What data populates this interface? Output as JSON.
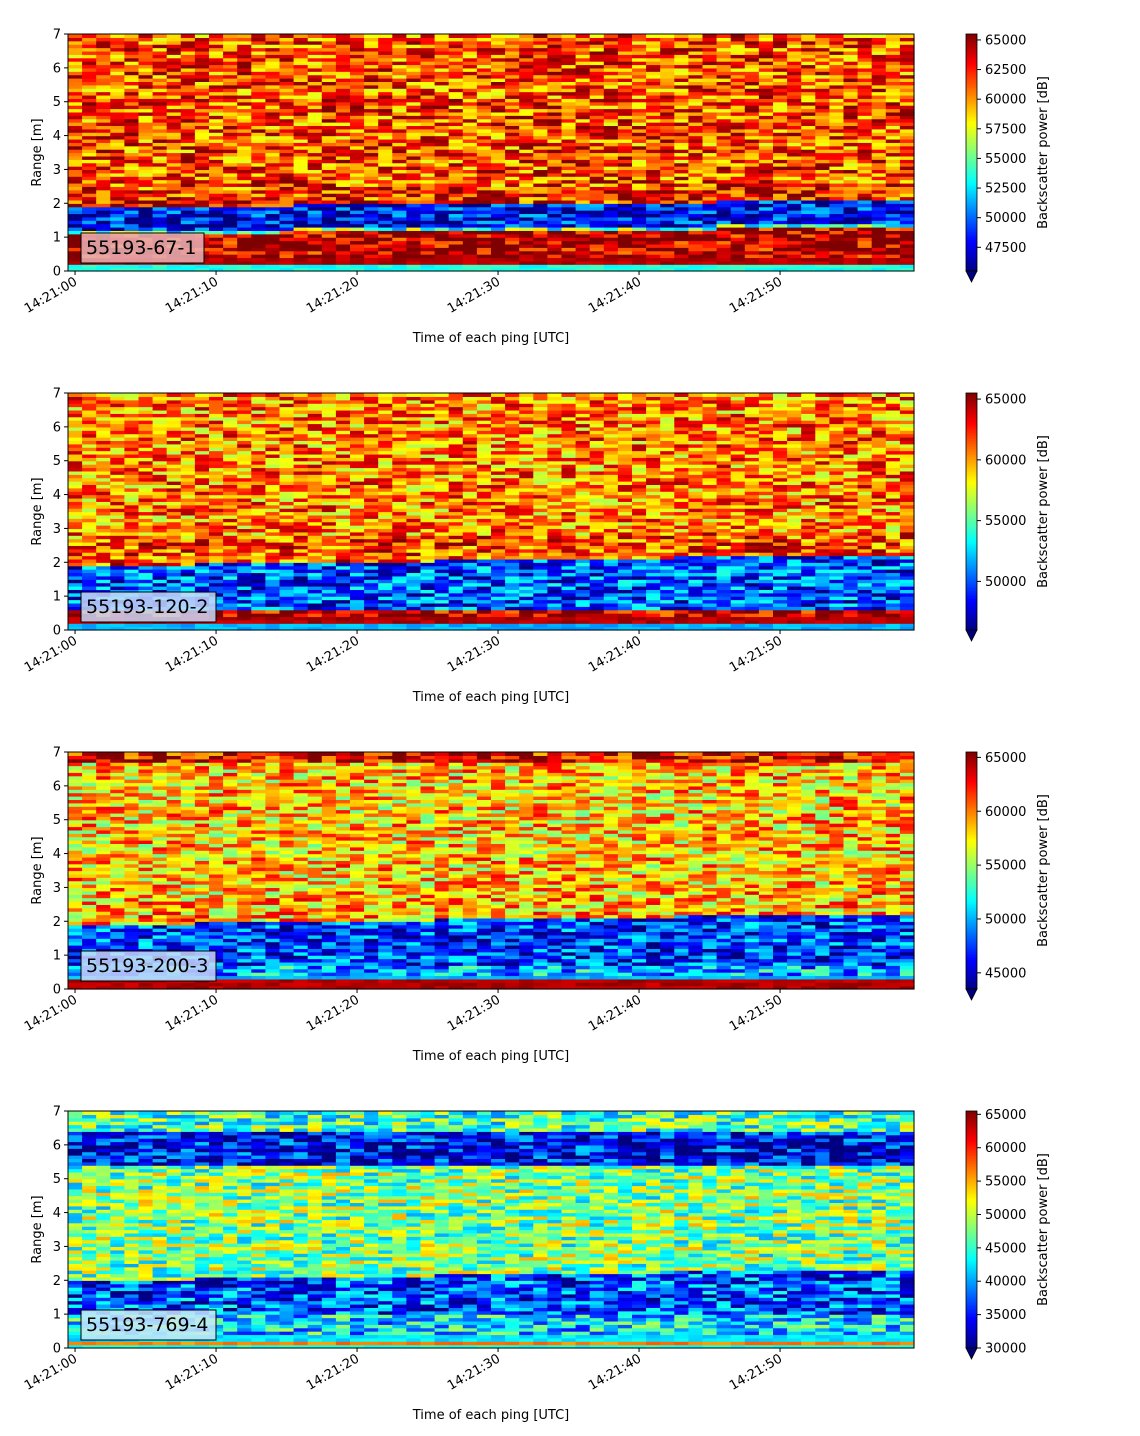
{
  "figure": {
    "colormap": "jet",
    "stops": [
      "#00007f",
      "#0000ff",
      "#007fff",
      "#00ffff",
      "#7fff7f",
      "#ffff00",
      "#ff7f00",
      "#ff0000",
      "#7f0000"
    ]
  },
  "chart_data": [
    {
      "type": "heatmap",
      "label": "55193-67-1",
      "label_color": "#e8b4b8",
      "xlabel": "Time of each ping [UTC]",
      "ylabel": "Range [m]",
      "ylim": [
        0,
        7
      ],
      "yticks": [
        "0",
        "1",
        "2",
        "3",
        "4",
        "5",
        "6",
        "7"
      ],
      "xticks": [
        "14:21:00",
        "14:21:10",
        "14:21:20",
        "14:21:30",
        "14:21:40",
        "14:21:50"
      ],
      "x_range_seconds": [
        -0.5,
        59.5
      ],
      "colorbar_label": "Backscatter power [dB]",
      "clim": [
        45500,
        65500
      ],
      "cticks": [
        "47500",
        "50000",
        "52500",
        "55000",
        "57500",
        "60000",
        "62500",
        "65000"
      ],
      "cextend": "min",
      "bands": [
        {
          "y": [
            0,
            0.2
          ],
          "level": 0.4
        },
        {
          "y": [
            0.2,
            1.1
          ],
          "level": 0.95
        },
        {
          "y": [
            1.1,
            1.2
          ],
          "level": 0.45
        },
        {
          "y": [
            1.2,
            1.9
          ],
          "level": 0.12
        },
        {
          "y": [
            1.9,
            2.4
          ],
          "level": 0.85
        },
        {
          "y": [
            2.4,
            7.0
          ],
          "level": 0.8
        }
      ]
    },
    {
      "type": "heatmap",
      "label": "55193-120-2",
      "label_color": "#c8d8f8",
      "xlabel": "Time of each ping [UTC]",
      "ylabel": "Range [m]",
      "ylim": [
        0,
        7
      ],
      "yticks": [
        "0",
        "1",
        "2",
        "3",
        "4",
        "5",
        "6",
        "7"
      ],
      "xticks": [
        "14:21:00",
        "14:21:10",
        "14:21:20",
        "14:21:30",
        "14:21:40",
        "14:21:50"
      ],
      "x_range_seconds": [
        -0.5,
        59.5
      ],
      "colorbar_label": "Backscatter power [dB]",
      "clim": [
        46000,
        65500
      ],
      "cticks": [
        "50000",
        "55000",
        "60000",
        "65000"
      ],
      "cextend": "min",
      "bands": [
        {
          "y": [
            0,
            0.2
          ],
          "level": 0.3
        },
        {
          "y": [
            0.2,
            0.6
          ],
          "level": 0.95
        },
        {
          "y": [
            0.6,
            1.9
          ],
          "level": 0.2
        },
        {
          "y": [
            1.9,
            2.6
          ],
          "level": 0.8
        },
        {
          "y": [
            2.6,
            7.0
          ],
          "level": 0.75
        }
      ]
    },
    {
      "type": "heatmap",
      "label": "55193-200-3",
      "label_color": "#c8d8f8",
      "xlabel": "Time of each ping [UTC]",
      "ylabel": "Range [m]",
      "ylim": [
        0,
        7
      ],
      "yticks": [
        "0",
        "1",
        "2",
        "3",
        "4",
        "5",
        "6",
        "7"
      ],
      "xticks": [
        "14:21:00",
        "14:21:10",
        "14:21:20",
        "14:21:30",
        "14:21:40",
        "14:21:50"
      ],
      "x_range_seconds": [
        -0.5,
        59.5
      ],
      "colorbar_label": "Backscatter power [dB]",
      "clim": [
        43500,
        65500
      ],
      "cticks": [
        "45000",
        "50000",
        "55000",
        "60000",
        "65000"
      ],
      "cextend": "min",
      "bands": [
        {
          "y": [
            0,
            0.35
          ],
          "level": 0.95
        },
        {
          "y": [
            0.35,
            0.7
          ],
          "level": 0.3
        },
        {
          "y": [
            0.7,
            1.9
          ],
          "level": 0.18
        },
        {
          "y": [
            1.9,
            2.6
          ],
          "level": 0.7
        },
        {
          "y": [
            2.6,
            6.7
          ],
          "level": 0.68
        },
        {
          "y": [
            6.7,
            7.0
          ],
          "level": 0.9
        }
      ]
    },
    {
      "type": "heatmap",
      "label": "55193-769-4",
      "label_color": "#c8e8f8",
      "xlabel": "Time of each ping [UTC]",
      "ylabel": "Range [m]",
      "ylim": [
        0,
        7
      ],
      "yticks": [
        "0",
        "1",
        "2",
        "3",
        "4",
        "5",
        "6",
        "7"
      ],
      "xticks": [
        "14:21:00",
        "14:21:10",
        "14:21:20",
        "14:21:30",
        "14:21:40",
        "14:21:50"
      ],
      "x_range_seconds": [
        -0.5,
        59.5
      ],
      "colorbar_label": "Backscatter power [dB]",
      "clim": [
        30000,
        65500
      ],
      "cticks": [
        "30000",
        "35000",
        "40000",
        "45000",
        "50000",
        "55000",
        "60000",
        "65000"
      ],
      "cextend": "min",
      "bands": [
        {
          "y": [
            0,
            0.1
          ],
          "level": 0.4
        },
        {
          "y": [
            0.1,
            0.25
          ],
          "level": 0.75
        },
        {
          "y": [
            0.25,
            1.0
          ],
          "level": 0.35
        },
        {
          "y": [
            1.0,
            2.0
          ],
          "level": 0.2
        },
        {
          "y": [
            2.0,
            5.4
          ],
          "level": 0.5
        },
        {
          "y": [
            5.4,
            6.4
          ],
          "level": 0.12
        },
        {
          "y": [
            6.4,
            7.0
          ],
          "level": 0.45
        }
      ]
    }
  ]
}
